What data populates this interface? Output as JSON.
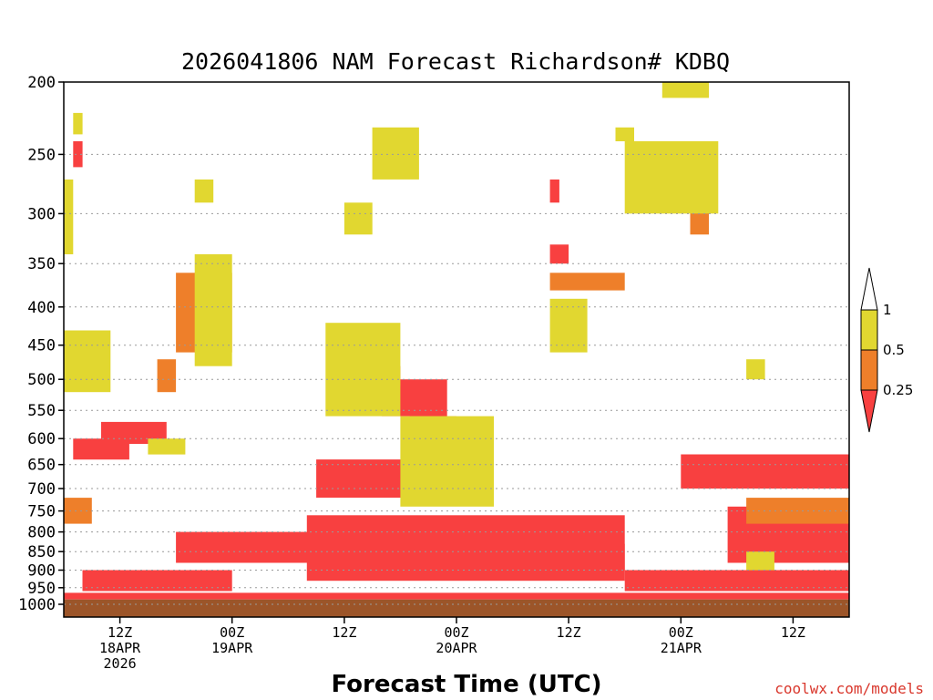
{
  "chart_data": {
    "type": "heatmap",
    "title": "2026041806 NAM Forecast Richardson# KDBQ",
    "xlabel": "Forecast Time (UTC)",
    "ylabel": "",
    "credit": "coolwx.com/models",
    "x_range_hours": [
      0,
      84
    ],
    "y_axis": {
      "scale": "log-pressure",
      "ylim": [
        1040,
        200
      ],
      "ticks": [
        200,
        250,
        300,
        350,
        400,
        450,
        500,
        550,
        600,
        650,
        700,
        750,
        800,
        850,
        900,
        950,
        1000
      ]
    },
    "x_ticks": [
      {
        "hour": 6,
        "line1": "12Z",
        "line2": "18APR",
        "line3": "2026"
      },
      {
        "hour": 18,
        "line1": "00Z",
        "line2": "19APR",
        "line3": ""
      },
      {
        "hour": 30,
        "line1": "12Z",
        "line2": "",
        "line3": ""
      },
      {
        "hour": 42,
        "line1": "00Z",
        "line2": "20APR",
        "line3": ""
      },
      {
        "hour": 54,
        "line1": "12Z",
        "line2": "",
        "line3": ""
      },
      {
        "hour": 66,
        "line1": "00Z",
        "line2": "21APR",
        "line3": ""
      },
      {
        "hour": 78,
        "line1": "12Z",
        "line2": "",
        "line3": ""
      }
    ],
    "legend": {
      "position": "right",
      "labels": [
        "1",
        "0.5",
        "0.25"
      ],
      "classes": [
        {
          "name": "0.5 to 1",
          "color": "#e1d730"
        },
        {
          "name": "0.25 to 0.5",
          "color": "#ee7f2a"
        },
        {
          "name": "below 0.25",
          "color": "#f84040"
        }
      ]
    },
    "colors": {
      "yellow": "#e1d730",
      "orange": "#ee7f2a",
      "red": "#f84040",
      "ground": "#9c5529"
    },
    "surface_pressure": 985,
    "regions": [
      {
        "class": "red",
        "hour_start": 0,
        "hour_end": 84,
        "p_top": 965,
        "p_bottom": 985
      },
      {
        "class": "red",
        "hour_start": 2,
        "hour_end": 18,
        "p_top": 900,
        "p_bottom": 960
      },
      {
        "class": "red",
        "hour_start": 12,
        "hour_end": 30,
        "p_top": 800,
        "p_bottom": 880
      },
      {
        "class": "red",
        "hour_start": 26,
        "hour_end": 60,
        "p_top": 760,
        "p_bottom": 930
      },
      {
        "class": "red",
        "hour_start": 40,
        "hour_end": 60,
        "p_top": 830,
        "p_bottom": 900
      },
      {
        "class": "red",
        "hour_start": 60,
        "hour_end": 84,
        "p_top": 900,
        "p_bottom": 960
      },
      {
        "class": "red",
        "hour_start": 71,
        "hour_end": 84,
        "p_top": 740,
        "p_bottom": 880
      },
      {
        "class": "red",
        "hour_start": 66,
        "hour_end": 84,
        "p_top": 630,
        "p_bottom": 700
      },
      {
        "class": "red",
        "hour_start": 27,
        "hour_end": 37,
        "p_top": 640,
        "p_bottom": 720
      },
      {
        "class": "red",
        "hour_start": 34,
        "hour_end": 41,
        "p_top": 500,
        "p_bottom": 560
      },
      {
        "class": "red",
        "hour_start": 4,
        "hour_end": 11,
        "p_top": 570,
        "p_bottom": 610
      },
      {
        "class": "red",
        "hour_start": 1,
        "hour_end": 7,
        "p_top": 600,
        "p_bottom": 640
      },
      {
        "class": "red",
        "hour_start": 52,
        "hour_end": 54,
        "p_top": 330,
        "p_bottom": 350
      },
      {
        "class": "red",
        "hour_start": 52,
        "hour_end": 53,
        "p_top": 270,
        "p_bottom": 290
      },
      {
        "class": "red",
        "hour_start": 63,
        "hour_end": 64,
        "p_top": 270,
        "p_bottom": 290
      },
      {
        "class": "red",
        "hour_start": 1,
        "hour_end": 2,
        "p_top": 240,
        "p_bottom": 260
      },
      {
        "class": "orange",
        "hour_start": 12,
        "hour_end": 18,
        "p_top": 360,
        "p_bottom": 460
      },
      {
        "class": "orange",
        "hour_start": 10,
        "hour_end": 12,
        "p_top": 470,
        "p_bottom": 520
      },
      {
        "class": "orange",
        "hour_start": 30,
        "hour_end": 36,
        "p_top": 480,
        "p_bottom": 510
      },
      {
        "class": "orange",
        "hour_start": 37,
        "hour_end": 42,
        "p_top": 560,
        "p_bottom": 640
      },
      {
        "class": "orange",
        "hour_start": 52,
        "hour_end": 60,
        "p_top": 360,
        "p_bottom": 380
      },
      {
        "class": "orange",
        "hour_start": 65,
        "hour_end": 68,
        "p_top": 270,
        "p_bottom": 290
      },
      {
        "class": "orange",
        "hour_start": 67,
        "hour_end": 69,
        "p_top": 290,
        "p_bottom": 320
      },
      {
        "class": "orange",
        "hour_start": 0,
        "hour_end": 3,
        "p_top": 720,
        "p_bottom": 780
      },
      {
        "class": "orange",
        "hour_start": 73,
        "hour_end": 84,
        "p_top": 720,
        "p_bottom": 780
      },
      {
        "class": "yellow",
        "hour_start": 14,
        "hour_end": 18,
        "p_top": 340,
        "p_bottom": 480
      },
      {
        "class": "yellow",
        "hour_start": 0,
        "hour_end": 5,
        "p_top": 430,
        "p_bottom": 520
      },
      {
        "class": "yellow",
        "hour_start": 28,
        "hour_end": 36,
        "p_top": 420,
        "p_bottom": 560
      },
      {
        "class": "yellow",
        "hour_start": 36,
        "hour_end": 46,
        "p_top": 560,
        "p_bottom": 740
      },
      {
        "class": "yellow",
        "hour_start": 33,
        "hour_end": 38,
        "p_top": 230,
        "p_bottom": 270
      },
      {
        "class": "yellow",
        "hour_start": 30,
        "hour_end": 33,
        "p_top": 290,
        "p_bottom": 320
      },
      {
        "class": "yellow",
        "hour_start": 52,
        "hour_end": 56,
        "p_top": 390,
        "p_bottom": 460
      },
      {
        "class": "yellow",
        "hour_start": 60,
        "hour_end": 70,
        "p_top": 240,
        "p_bottom": 300
      },
      {
        "class": "yellow",
        "hour_start": 64,
        "hour_end": 69,
        "p_top": 200,
        "p_bottom": 210
      },
      {
        "class": "yellow",
        "hour_start": 59,
        "hour_end": 61,
        "p_top": 230,
        "p_bottom": 240
      },
      {
        "class": "yellow",
        "hour_start": 14,
        "hour_end": 16,
        "p_top": 270,
        "p_bottom": 290
      },
      {
        "class": "yellow",
        "hour_start": 1,
        "hour_end": 2,
        "p_top": 220,
        "p_bottom": 235
      },
      {
        "class": "yellow",
        "hour_start": 0,
        "hour_end": 1,
        "p_top": 270,
        "p_bottom": 340
      },
      {
        "class": "yellow",
        "hour_start": 9,
        "hour_end": 13,
        "p_top": 600,
        "p_bottom": 630
      },
      {
        "class": "yellow",
        "hour_start": 73,
        "hour_end": 76,
        "p_top": 850,
        "p_bottom": 900
      },
      {
        "class": "yellow",
        "hour_start": 73,
        "hour_end": 75,
        "p_top": 470,
        "p_bottom": 500
      }
    ]
  }
}
